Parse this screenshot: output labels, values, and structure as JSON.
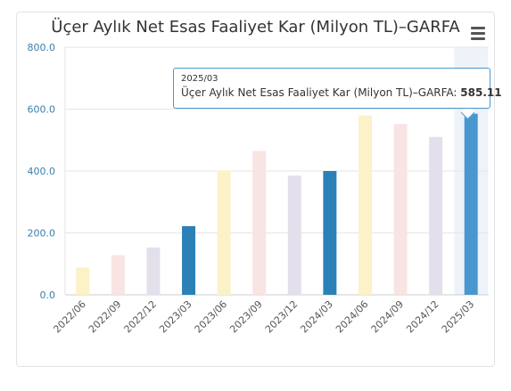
{
  "chart_data": {
    "type": "bar",
    "title": "Üçer Aylık Net Esas Faaliyet Kar (Milyon TL)–GARFA",
    "categories": [
      "2022/06",
      "2022/09",
      "2022/12",
      "2023/03",
      "2023/06",
      "2023/09",
      "2023/12",
      "2024/03",
      "2024/06",
      "2024/09",
      "2024/12",
      "2025/03"
    ],
    "series": [
      {
        "name": "Üçer Aylık Net Esas Faaliyet Kar (Milyon TL)–GARFA",
        "values": [
          88,
          128,
          153,
          222,
          402,
          465,
          385,
          400,
          580,
          552,
          510,
          585.11
        ]
      }
    ],
    "bar_colors": [
      "#fbf2c8",
      "#f9e4e4",
      "#e3e0ec",
      "#2c80b8",
      "#fbf2c8",
      "#f9e4e4",
      "#e3e0ec",
      "#2c80b8",
      "#fbf2c8",
      "#f9e4e4",
      "#e3e0ec",
      "#4a97cf"
    ],
    "ylim": [
      0,
      800
    ],
    "yticks": [
      "0.0",
      "200.0",
      "400.0",
      "600.0",
      "800.0"
    ],
    "ytick_values": [
      0,
      200,
      400,
      600,
      800
    ],
    "grid": true,
    "legend": "none"
  },
  "tooltip": {
    "date": "2025/03",
    "label": "Üçer Aylık Net Esas Faaliyet Kar (Milyon TL)–GARFA:",
    "value": "585.11"
  },
  "menu": {
    "icon": "hamburger-icon"
  }
}
